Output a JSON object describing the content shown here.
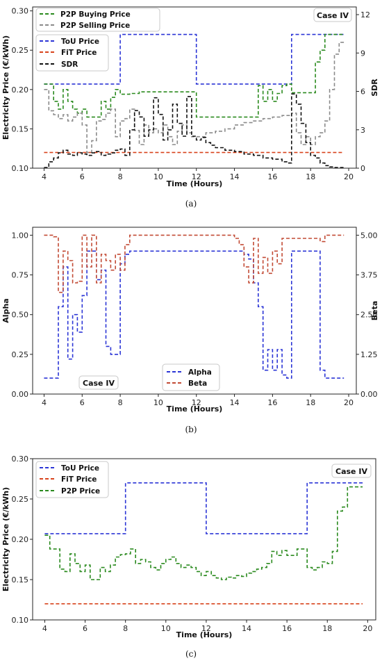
{
  "colors": {
    "tou": "#2b35d6",
    "fit": "#d8431c",
    "buy": "#2a8a1e",
    "sell": "#8a8a8a",
    "sdr": "#111111",
    "alpha": "#2b35d6",
    "beta": "#c24a34",
    "p2p": "#2a8a1e"
  },
  "chart_data": [
    {
      "type": "line",
      "caption": "(a)",
      "badge": "Case IV",
      "xlabel": "Time (Hours)",
      "ylabel": "Electricity Price (€/kWh)",
      "y2label": "SDR",
      "xlim": [
        3.4,
        20.4
      ],
      "ylim": [
        0.1,
        0.305
      ],
      "y2lim": [
        0,
        12.6
      ],
      "xticks": [
        4,
        6,
        8,
        10,
        12,
        14,
        16,
        18,
        20
      ],
      "yticks": [
        0.1,
        0.15,
        0.2,
        0.25,
        0.3
      ],
      "y2ticks": [
        0,
        3,
        6,
        9,
        12
      ],
      "legend_top": [
        "P2P Buying Price",
        "P2P Selling Price"
      ],
      "legend_mid": [
        "ToU Price",
        "FiT Price",
        "SDR"
      ],
      "series": [
        {
          "name": "ToU Price",
          "axis": "y",
          "color": "tou",
          "x": [
            4,
            8,
            8,
            12,
            12,
            17,
            17,
            19.75
          ],
          "y": [
            0.207,
            0.207,
            0.27,
            0.27,
            0.207,
            0.207,
            0.27,
            0.27
          ]
        },
        {
          "name": "FiT Price",
          "axis": "y",
          "color": "fit",
          "x": [
            4,
            19.75
          ],
          "y": [
            0.12,
            0.12
          ]
        },
        {
          "name": "P2P Buying Price",
          "axis": "y",
          "color": "buy",
          "step": true,
          "x": [
            4,
            4.25,
            4.5,
            4.75,
            5,
            5.25,
            5.5,
            5.75,
            6,
            6.25,
            6.5,
            6.75,
            7,
            7.25,
            7.5,
            7.75,
            8,
            8.5,
            9,
            12,
            15.25,
            15.5,
            15.75,
            16,
            16.25,
            16.5,
            16.75,
            17,
            17.25,
            18.25,
            18.5,
            18.75,
            19.75
          ],
          "y": [
            0.207,
            0.207,
            0.185,
            0.175,
            0.2,
            0.185,
            0.175,
            0.17,
            0.175,
            0.165,
            0.165,
            0.165,
            0.185,
            0.175,
            0.19,
            0.2,
            0.194,
            0.195,
            0.197,
            0.165,
            0.205,
            0.185,
            0.2,
            0.185,
            0.195,
            0.205,
            0.207,
            0.196,
            0.196,
            0.235,
            0.25,
            0.27,
            0.27
          ]
        },
        {
          "name": "P2P Selling Price",
          "axis": "y",
          "color": "sell",
          "step": true,
          "x": [
            4,
            4.25,
            4.5,
            4.75,
            5,
            5.25,
            5.5,
            5.75,
            6,
            6.25,
            6.5,
            6.75,
            7,
            7.25,
            7.5,
            7.75,
            8,
            8.25,
            8.5,
            8.75,
            9,
            9.25,
            9.5,
            9.75,
            10,
            10.25,
            10.5,
            10.75,
            11,
            11.25,
            11.5,
            11.75,
            12,
            12.5,
            13,
            13.5,
            14,
            14.5,
            15,
            15.5,
            16,
            16.5,
            17,
            17.25,
            17.5,
            17.75,
            18,
            18.25,
            18.5,
            18.75,
            19,
            19.25,
            19.5,
            19.75
          ],
          "y": [
            0.2,
            0.173,
            0.168,
            0.163,
            0.168,
            0.16,
            0.165,
            0.17,
            0.155,
            0.12,
            0.135,
            0.16,
            0.162,
            0.17,
            0.175,
            0.14,
            0.16,
            0.163,
            0.175,
            0.148,
            0.13,
            0.155,
            0.145,
            0.15,
            0.145,
            0.155,
            0.14,
            0.13,
            0.147,
            0.155,
            0.145,
            0.14,
            0.14,
            0.145,
            0.147,
            0.15,
            0.155,
            0.158,
            0.16,
            0.163,
            0.165,
            0.167,
            0.17,
            0.145,
            0.13,
            0.14,
            0.13,
            0.14,
            0.145,
            0.16,
            0.2,
            0.245,
            0.26,
            0.26
          ]
        },
        {
          "name": "SDR",
          "axis": "y2",
          "color": "sdr",
          "step": true,
          "x": [
            4,
            4.25,
            4.5,
            4.75,
            5,
            5.25,
            5.5,
            5.75,
            6,
            6.25,
            6.5,
            6.75,
            7,
            7.25,
            7.5,
            7.75,
            8,
            8.25,
            8.5,
            8.75,
            9,
            9.25,
            9.5,
            9.75,
            10,
            10.25,
            10.5,
            10.75,
            11,
            11.25,
            11.5,
            11.75,
            12,
            12.25,
            12.5,
            12.75,
            13,
            13.5,
            14,
            14.5,
            15,
            15.5,
            16,
            16.5,
            16.75,
            17,
            17.25,
            17.5,
            17.75,
            18,
            18.25,
            18.5,
            18.75,
            19,
            19.25,
            19.5,
            19.75
          ],
          "y": [
            0.05,
            0.5,
            0.8,
            1.2,
            1.4,
            1.1,
            1.0,
            1.2,
            1.1,
            1.0,
            1.2,
            1.3,
            1.0,
            1.1,
            1.2,
            1.4,
            1.5,
            1.0,
            3.0,
            4.5,
            4.0,
            2.5,
            3.0,
            5.5,
            4.2,
            2.2,
            3.0,
            5.0,
            3.5,
            2.5,
            5.6,
            2.5,
            2.2,
            2.4,
            2.0,
            1.8,
            1.6,
            1.4,
            1.3,
            1.1,
            1.0,
            0.8,
            0.7,
            0.5,
            0.4,
            5.8,
            5.0,
            3.5,
            2.0,
            1.0,
            0.8,
            0.4,
            0.2,
            0.1,
            0.05,
            0.05,
            0.05
          ]
        }
      ]
    },
    {
      "type": "line",
      "caption": "(b)",
      "badge": "Case IV",
      "xlabel": "Time (Hours)",
      "ylabel": "Alpha",
      "y2label": "Beta",
      "xlim": [
        3.4,
        20.4
      ],
      "ylim": [
        0,
        1.05
      ],
      "y2lim": [
        0,
        5.25
      ],
      "xticks": [
        4,
        6,
        8,
        10,
        12,
        14,
        16,
        18,
        20
      ],
      "yticks": [
        0,
        0.25,
        0.5,
        0.75,
        1.0
      ],
      "ytick_labels": [
        "0.00",
        "0.25",
        "0.50",
        "0.75",
        "1.00"
      ],
      "y2ticks": [
        0,
        1.25,
        2.5,
        3.75,
        5
      ],
      "y2tick_labels": [
        "0.00",
        "1.25",
        "2.50",
        "3.75",
        "5.00"
      ],
      "legend": [
        "Alpha",
        "Beta"
      ],
      "series": [
        {
          "name": "Alpha",
          "axis": "y",
          "color": "alpha",
          "step": true,
          "x": [
            4,
            4.5,
            4.75,
            5,
            5.25,
            5.5,
            5.75,
            6,
            6.25,
            6.5,
            6.75,
            7,
            7.25,
            7.5,
            7.75,
            8,
            8.25,
            8.5,
            14.5,
            14.75,
            15,
            15.25,
            15.5,
            15.75,
            16,
            16.25,
            16.5,
            16.75,
            17,
            18.5,
            18.75,
            19.75
          ],
          "y": [
            0.1,
            0.1,
            0.55,
            0.8,
            0.22,
            0.5,
            0.39,
            0.62,
            0.9,
            0.9,
            0.72,
            0.78,
            0.3,
            0.25,
            0.25,
            0.82,
            0.88,
            0.9,
            0.88,
            0.85,
            0.7,
            0.55,
            0.15,
            0.28,
            0.15,
            0.28,
            0.12,
            0.1,
            0.9,
            0.15,
            0.1,
            0.1
          ]
        },
        {
          "name": "Beta",
          "axis": "y2",
          "color": "beta",
          "step": true,
          "x": [
            4,
            4.5,
            4.75,
            5,
            5.25,
            5.5,
            5.75,
            6,
            6.25,
            6.5,
            6.75,
            7,
            7.25,
            7.5,
            7.75,
            8,
            8.25,
            8.5,
            14,
            14.25,
            14.5,
            14.75,
            15,
            15.25,
            15.5,
            15.75,
            16,
            16.25,
            16.5,
            18.5,
            18.75,
            19.75
          ],
          "y": [
            5.0,
            4.95,
            3.2,
            4.5,
            4.2,
            3.5,
            3.55,
            5.0,
            4.0,
            5.0,
            3.5,
            4.4,
            4.2,
            3.9,
            4.4,
            3.9,
            4.7,
            5.0,
            4.9,
            4.7,
            4.0,
            3.5,
            4.9,
            3.8,
            4.3,
            3.8,
            4.5,
            4.1,
            4.9,
            4.8,
            5.0,
            5.0
          ]
        }
      ]
    },
    {
      "type": "line",
      "caption": "(c)",
      "badge": "Case IV",
      "xlabel": "Time (Hours)",
      "ylabel": "Electricity Price (€/kWh)",
      "xlim": [
        3.4,
        20.4
      ],
      "ylim": [
        0.1,
        0.3
      ],
      "xticks": [
        4,
        6,
        8,
        10,
        12,
        14,
        16,
        18,
        20
      ],
      "yticks": [
        0.1,
        0.15,
        0.2,
        0.25,
        0.3
      ],
      "legend": [
        "ToU Price",
        "FiT Price",
        "P2P Price"
      ],
      "series": [
        {
          "name": "ToU Price",
          "axis": "y",
          "color": "tou",
          "x": [
            4,
            8,
            8,
            12,
            12,
            17,
            17,
            19.75
          ],
          "y": [
            0.207,
            0.207,
            0.27,
            0.27,
            0.207,
            0.207,
            0.27,
            0.27
          ]
        },
        {
          "name": "FiT Price",
          "axis": "y",
          "color": "fit",
          "x": [
            4,
            19.75
          ],
          "y": [
            0.12,
            0.12
          ]
        },
        {
          "name": "P2P Price",
          "axis": "y",
          "color": "p2p",
          "step": true,
          "x": [
            4,
            4.25,
            4.75,
            5,
            5.25,
            5.5,
            5.75,
            6,
            6.25,
            6.75,
            7,
            7.25,
            7.5,
            7.75,
            8,
            8.25,
            8.5,
            8.75,
            9,
            9.25,
            9.5,
            9.75,
            10,
            10.25,
            10.5,
            10.75,
            11,
            11.25,
            11.5,
            11.75,
            12,
            12.25,
            12.5,
            12.75,
            13,
            13.25,
            13.5,
            13.75,
            14,
            14.25,
            14.5,
            14.75,
            15,
            15.25,
            15.5,
            15.75,
            16,
            16.5,
            17,
            17.25,
            17.5,
            17.75,
            18,
            18.25,
            18.5,
            18.75,
            19,
            19.75
          ],
          "y": [
            0.205,
            0.188,
            0.163,
            0.16,
            0.182,
            0.17,
            0.16,
            0.168,
            0.15,
            0.165,
            0.16,
            0.168,
            0.178,
            0.181,
            0.182,
            0.188,
            0.17,
            0.175,
            0.172,
            0.165,
            0.162,
            0.17,
            0.175,
            0.178,
            0.17,
            0.165,
            0.168,
            0.165,
            0.16,
            0.155,
            0.16,
            0.155,
            0.152,
            0.15,
            0.153,
            0.152,
            0.155,
            0.154,
            0.158,
            0.16,
            0.163,
            0.165,
            0.17,
            0.185,
            0.18,
            0.186,
            0.18,
            0.188,
            0.165,
            0.162,
            0.165,
            0.172,
            0.17,
            0.185,
            0.235,
            0.24,
            0.265,
            0.265
          ]
        }
      ]
    }
  ]
}
